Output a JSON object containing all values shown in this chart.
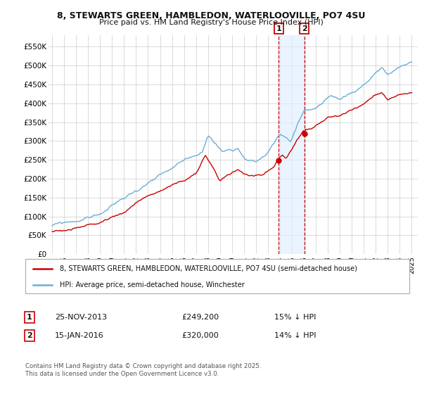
{
  "title_line1": "8, STEWARTS GREEN, HAMBLEDON, WATERLOOVILLE, PO7 4SU",
  "title_line2": "Price paid vs. HM Land Registry's House Price Index (HPI)",
  "legend_line1": "8, STEWARTS GREEN, HAMBLEDON, WATERLOOVILLE, PO7 4SU (semi-detached house)",
  "legend_line2": "HPI: Average price, semi-detached house, Winchester",
  "footer": "Contains HM Land Registry data © Crown copyright and database right 2025.\nThis data is licensed under the Open Government Licence v3.0.",
  "annotation1_label": "1",
  "annotation1_date": "25-NOV-2013",
  "annotation1_price": "£249,200",
  "annotation1_hpi": "15% ↓ HPI",
  "annotation2_label": "2",
  "annotation2_date": "15-JAN-2016",
  "annotation2_price": "£320,000",
  "annotation2_hpi": "14% ↓ HPI",
  "sale1_date_num": 2013.9,
  "sale1_price": 249200,
  "sale2_date_num": 2016.04,
  "sale2_price": 320000,
  "hpi_color": "#6baed6",
  "price_color": "#cc0000",
  "sale_point_color": "#cc0000",
  "vline_color": "#cc0000",
  "shade_color": "#ddeeff",
  "background_color": "#ffffff",
  "grid_color": "#cccccc",
  "ylim": [
    0,
    580000
  ],
  "yticks": [
    0,
    50000,
    100000,
    150000,
    200000,
    250000,
    300000,
    350000,
    400000,
    450000,
    500000,
    550000
  ],
  "xlim_start": 1994.7,
  "xlim_end": 2025.5
}
